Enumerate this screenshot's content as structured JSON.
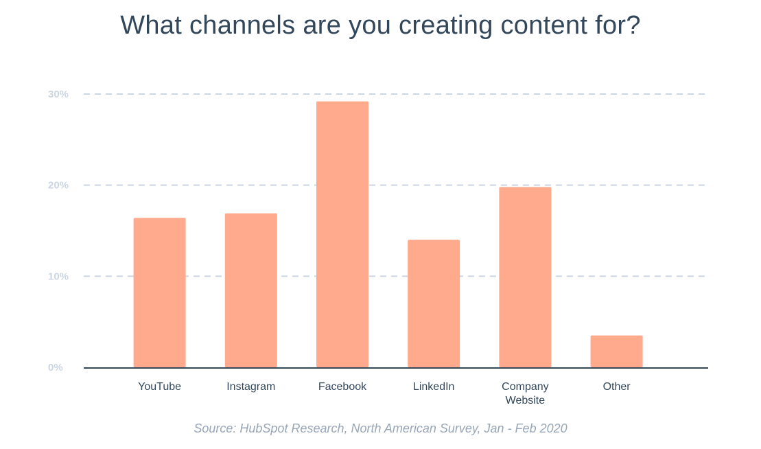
{
  "chart_data": {
    "type": "bar",
    "title": "What channels are you creating content for?",
    "categories": [
      [
        "YouTube"
      ],
      [
        "Instagram"
      ],
      [
        "Facebook"
      ],
      [
        "LinkedIn"
      ],
      [
        "Company",
        "Website"
      ],
      [
        "Other"
      ]
    ],
    "values": [
      16.4,
      16.9,
      29.2,
      14.0,
      19.8,
      3.5
    ],
    "unit": "%",
    "yticks": [
      {
        "value": 0,
        "label": "0%"
      },
      {
        "value": 10,
        "label": "10%"
      },
      {
        "value": 20,
        "label": "20%"
      },
      {
        "value": 30,
        "label": "30%"
      }
    ],
    "ylim": [
      0,
      30
    ],
    "grid": true,
    "xlabel": "",
    "ylabel": "",
    "source": "Source: HubSpot Research, North American Survey, Jan - Feb 2020"
  },
  "colors": {
    "bar": "#ffa98d",
    "gridline": "#cbd6e2",
    "axis": "#33475b",
    "title": "#33475b"
  }
}
